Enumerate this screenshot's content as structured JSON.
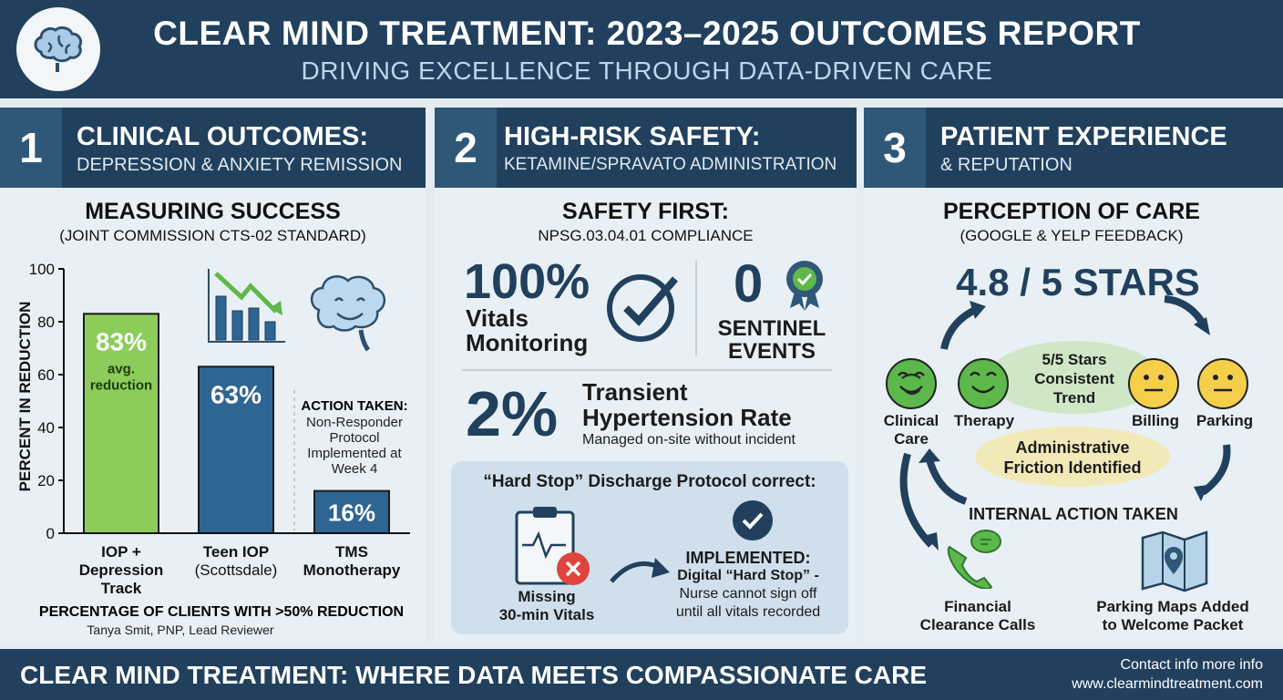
{
  "header": {
    "title": "CLEAR MIND TREATMENT: 2023–2025 OUTCOMES REPORT",
    "subtitle": "DRIVING EXCELLENCE THROUGH DATA-DRIVEN CARE"
  },
  "panels": [
    {
      "number": "1",
      "title": "CLINICAL OUTCOMES:",
      "subtitle": "DEPRESSION & ANXIETY REMISSION",
      "heading": "MEASURING SUCCESS",
      "subheading": "(JOINT COMMISSION CTS-02 STANDARD)",
      "action": {
        "title": "ACTION TAKEN:",
        "text": "Non-Responder Protocol Implemented at Week 4"
      },
      "reviewer": "Tanya Smit, PNP, Lead Reviewer"
    },
    {
      "number": "2",
      "title": "HIGH-RISK SAFETY:",
      "subtitle": "KETAMINE/SPRAVATO ADMINISTRATION",
      "heading": "SAFETY FIRST:",
      "subheading": "NPSG.03.04.01 COMPLIANCE",
      "vitals": {
        "value": "100%",
        "label1": "Vitals",
        "label2": "Monitoring"
      },
      "sentinel": {
        "value": "0",
        "label1": "SENTINEL",
        "label2": "EVENTS"
      },
      "hypertension": {
        "value": "2%",
        "label1": "Transient",
        "label2": "Hypertension Rate",
        "note": "Managed on-site without incident"
      },
      "protocol": {
        "title": "“Hard Stop” Discharge Protocol correct:",
        "missing1": "Missing",
        "missing2": "30-min Vitals",
        "implemented": "IMPLEMENTED:",
        "line1": "Digital “Hard Stop” -",
        "line2": "Nurse cannot sign off",
        "line3": "until all vitals recorded"
      }
    },
    {
      "number": "3",
      "title": "PATIENT EXPERIENCE",
      "subtitle": "& REPUTATION",
      "heading": "PERCEPTION OF CARE",
      "subheading": "(GOOGLE & YELP FEEDBACK)",
      "rating": "4.8 / 5 STARS",
      "positive_bubble": [
        "5/5 Stars",
        "Consistent",
        "Trend"
      ],
      "friction_bubble": [
        "Administrative",
        "Friction Identified"
      ],
      "faces": [
        {
          "label": "Clinical Care",
          "mood": "happy"
        },
        {
          "label": "Therapy",
          "mood": "happy"
        },
        {
          "label": "Billing",
          "mood": "neutral"
        },
        {
          "label": "Parking",
          "mood": "neutral"
        }
      ],
      "action_title": "INTERNAL ACTION TAKEN",
      "actions": [
        [
          "Financial",
          "Clearance Calls"
        ],
        [
          "Parking Maps Added",
          "to Welcome Packet"
        ]
      ]
    }
  ],
  "chart_data": {
    "type": "bar",
    "categories": [
      "IOP + Depression Track",
      "Teen IOP (Scottsdale)",
      "TMS Monotherapy"
    ],
    "category_lines": [
      [
        "IOP +",
        "Depression",
        "Track"
      ],
      [
        "Teen IOP",
        "(Scottsdale)",
        ""
      ],
      [
        "TMS",
        "Monotherapy",
        ""
      ]
    ],
    "values": [
      83,
      63,
      16
    ],
    "data_labels": [
      "83%",
      "63%",
      "16%"
    ],
    "value_sublabel": [
      "avg.",
      "reduction"
    ],
    "colors": [
      "#8ccc5a",
      "#2f6592",
      "#2f6592"
    ],
    "ylabel": "PERCENT  IN REDUCTION",
    "xlabel": "PERCENTAGE OF CLIENTS WITH >50% REDUCTION",
    "ylim": [
      0,
      100
    ],
    "yticks": [
      "0",
      "20",
      "40",
      "60",
      "80",
      "100"
    ],
    "grid": false
  },
  "footer": {
    "text": "CLEAR MIND TREATMENT: WHERE DATA MEETS COMPASSIONATE CARE",
    "contact": "Contact info more info",
    "website": "www.clearmindtreatment.com"
  }
}
